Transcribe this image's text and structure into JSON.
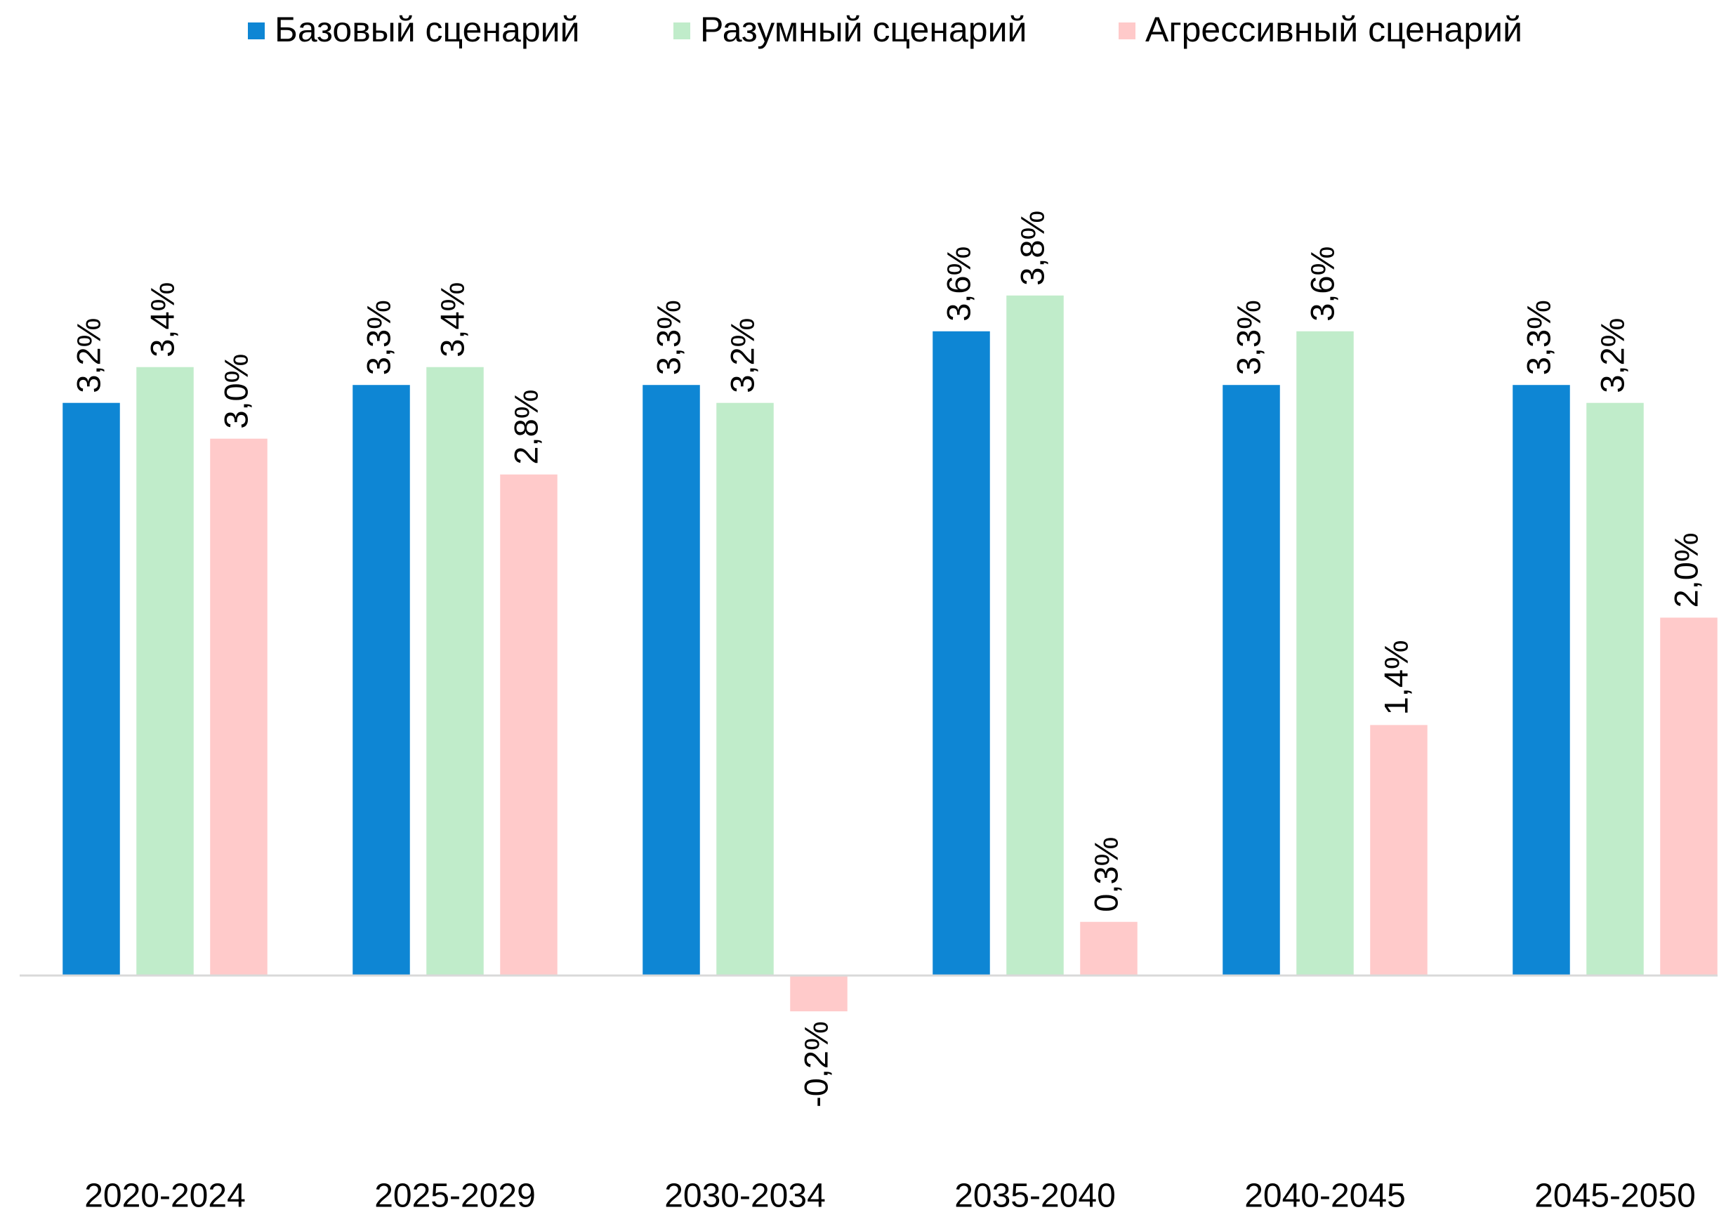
{
  "chart_data": {
    "type": "bar",
    "categories": [
      "2020-2024",
      "2025-2029",
      "2030-2034",
      "2035-2040",
      "2040-2045",
      "2045-2050"
    ],
    "series": [
      {
        "name": "Базовый сценарий",
        "color": "#0e86d4",
        "values": [
          3.2,
          3.3,
          3.3,
          3.6,
          3.3,
          3.3
        ],
        "value_labels": [
          "3,2%",
          "3,3%",
          "3,3%",
          "3,6%",
          "3,3%",
          "3,3%"
        ]
      },
      {
        "name": "Разумный сценарий",
        "color": "#c0ecca",
        "values": [
          3.4,
          3.4,
          3.2,
          3.8,
          3.6,
          3.2
        ],
        "value_labels": [
          "3,4%",
          "3,4%",
          "3,2%",
          "3,8%",
          "3,6%",
          "3,2%"
        ]
      },
      {
        "name": "Агрессивный сценарий",
        "color": "#ffcaca",
        "values": [
          3.0,
          2.8,
          -0.2,
          0.3,
          1.4,
          2.0
        ],
        "value_labels": [
          "3,0%",
          "2,8%",
          "-0,2%",
          "0,3%",
          "1,4%",
          "2,0%"
        ]
      }
    ],
    "ylim": [
      -1,
      5
    ],
    "legend": "top"
  }
}
